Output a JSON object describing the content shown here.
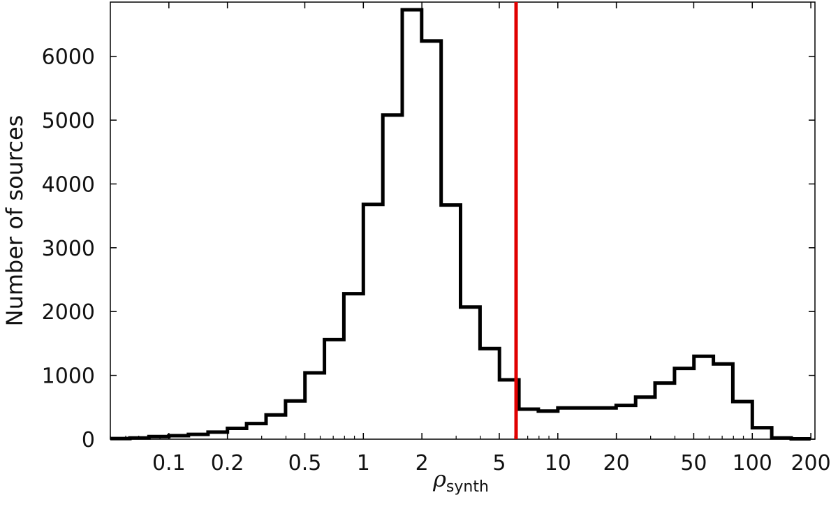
{
  "chart_data": {
    "type": "histogram",
    "title": "",
    "xlabel": {
      "symbol": "ρ",
      "subscript": "synth"
    },
    "ylabel": "Number of sources",
    "xscale": "log",
    "xlim": [
      0.05,
      210
    ],
    "ylim": [
      0,
      6850
    ],
    "x_ticks": [
      0.1,
      0.2,
      0.5,
      1,
      2,
      5,
      10,
      20,
      50,
      100,
      200
    ],
    "x_tick_labels": [
      "0.1",
      "0.2",
      "0.5",
      "1",
      "2",
      "5",
      "10",
      "20",
      "50",
      "100",
      "200"
    ],
    "y_ticks": [
      0,
      1000,
      2000,
      3000,
      4000,
      5000,
      6000
    ],
    "y_tick_labels": [
      "0",
      "1000",
      "2000",
      "3000",
      "4000",
      "5000",
      "6000"
    ],
    "grid": false,
    "line_color": "#000000",
    "threshold_color": "#e00000",
    "threshold_x": 6.1,
    "bins": [
      {
        "lo": 0.05,
        "hi": 0.063,
        "count": 10
      },
      {
        "lo": 0.063,
        "hi": 0.079,
        "count": 20
      },
      {
        "lo": 0.079,
        "hi": 0.1,
        "count": 40
      },
      {
        "lo": 0.1,
        "hi": 0.126,
        "count": 55
      },
      {
        "lo": 0.126,
        "hi": 0.159,
        "count": 75
      },
      {
        "lo": 0.159,
        "hi": 0.2,
        "count": 110
      },
      {
        "lo": 0.2,
        "hi": 0.251,
        "count": 170
      },
      {
        "lo": 0.251,
        "hi": 0.316,
        "count": 245
      },
      {
        "lo": 0.316,
        "hi": 0.398,
        "count": 380
      },
      {
        "lo": 0.398,
        "hi": 0.501,
        "count": 600
      },
      {
        "lo": 0.501,
        "hi": 0.631,
        "count": 1040
      },
      {
        "lo": 0.631,
        "hi": 0.794,
        "count": 1560
      },
      {
        "lo": 0.794,
        "hi": 1.0,
        "count": 2280
      },
      {
        "lo": 1.0,
        "hi": 1.259,
        "count": 3680
      },
      {
        "lo": 1.259,
        "hi": 1.585,
        "count": 5080
      },
      {
        "lo": 1.585,
        "hi": 1.995,
        "count": 6730
      },
      {
        "lo": 1.995,
        "hi": 2.512,
        "count": 6240
      },
      {
        "lo": 2.512,
        "hi": 3.162,
        "count": 3670
      },
      {
        "lo": 3.162,
        "hi": 3.981,
        "count": 2070
      },
      {
        "lo": 3.981,
        "hi": 5.012,
        "count": 1420
      },
      {
        "lo": 5.012,
        "hi": 6.31,
        "count": 930
      },
      {
        "lo": 6.31,
        "hi": 7.943,
        "count": 470
      },
      {
        "lo": 7.943,
        "hi": 10.0,
        "count": 440
      },
      {
        "lo": 10.0,
        "hi": 12.59,
        "count": 490
      },
      {
        "lo": 12.59,
        "hi": 15.85,
        "count": 490
      },
      {
        "lo": 15.85,
        "hi": 19.95,
        "count": 490
      },
      {
        "lo": 19.95,
        "hi": 25.12,
        "count": 530
      },
      {
        "lo": 25.12,
        "hi": 31.62,
        "count": 660
      },
      {
        "lo": 31.62,
        "hi": 39.81,
        "count": 880
      },
      {
        "lo": 39.81,
        "hi": 50.12,
        "count": 1110
      },
      {
        "lo": 50.12,
        "hi": 63.1,
        "count": 1300
      },
      {
        "lo": 63.1,
        "hi": 79.43,
        "count": 1180
      },
      {
        "lo": 79.43,
        "hi": 100.0,
        "count": 590
      },
      {
        "lo": 100.0,
        "hi": 125.9,
        "count": 180
      },
      {
        "lo": 125.9,
        "hi": 158.5,
        "count": 20
      },
      {
        "lo": 158.5,
        "hi": 199.5,
        "count": 5
      }
    ]
  }
}
